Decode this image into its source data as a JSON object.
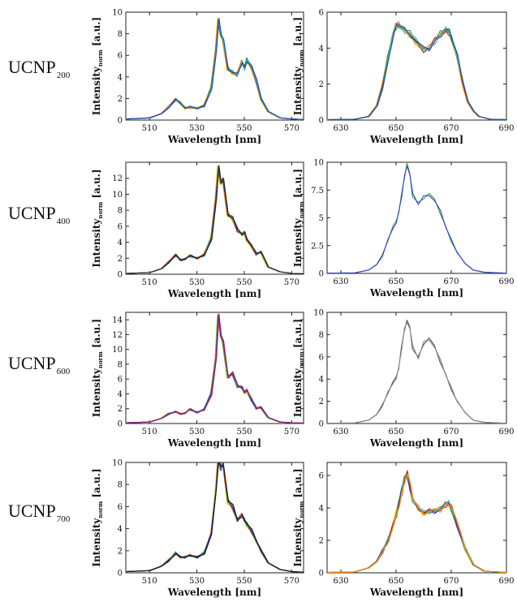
{
  "rows": [
    {
      "label_main": "UCNP",
      "label_sub": "200"
    },
    {
      "label_main": "UCNP",
      "label_sub": "400"
    },
    {
      "label_main": "UCNP",
      "label_sub": "600"
    },
    {
      "label_main": "UCNP",
      "label_sub": "700"
    }
  ],
  "ylabel_main": "Intensity",
  "ylabel_sub": "norm",
  "ylabel_unit": "[a.u.]",
  "xlabel": "Wavelength [nm]",
  "chart_data": [
    {
      "type": "line",
      "row": 0,
      "col": 0,
      "xlim": [
        500,
        575
      ],
      "ylim": [
        0,
        10
      ],
      "xticks": [
        510,
        530,
        550,
        570
      ],
      "yticks": [
        0,
        2,
        4,
        6,
        8,
        10
      ],
      "yticklabels": [
        "0",
        "2",
        "4",
        "6",
        "8",
        "10"
      ],
      "colors": [
        "#e6b800",
        "#ff8c00",
        "#d62728",
        "#2ca02c",
        "#17becf",
        "#1f3fbf"
      ],
      "x": [
        500,
        510,
        515,
        518,
        521,
        523,
        525,
        527,
        530,
        533,
        536,
        538,
        539,
        540,
        541,
        543,
        545,
        547,
        549,
        550,
        551,
        553,
        555,
        557,
        560,
        565,
        570,
        575
      ],
      "y": [
        0.1,
        0.2,
        0.6,
        1.2,
        1.9,
        1.6,
        1.1,
        1.2,
        1.1,
        1.3,
        3.0,
        6.5,
        9.2,
        8.0,
        7.4,
        4.8,
        4.4,
        4.2,
        5.4,
        4.8,
        5.6,
        4.9,
        3.6,
        2.0,
        0.8,
        0.2,
        0.1,
        0.05
      ]
    },
    {
      "type": "line",
      "row": 0,
      "col": 1,
      "xlim": [
        625,
        690
      ],
      "ylim": [
        0,
        6
      ],
      "xticks": [
        630,
        650,
        670,
        690
      ],
      "yticks": [
        0,
        2,
        4,
        6
      ],
      "yticklabels": [
        "0",
        "2",
        "4",
        "6"
      ],
      "colors": [
        "#e6b800",
        "#ff8c00",
        "#d62728",
        "#2ca02c",
        "#17becf",
        "#1f3fbf"
      ],
      "x": [
        625,
        635,
        640,
        643,
        645,
        647,
        649,
        650,
        651,
        653,
        655,
        657,
        660,
        662,
        664,
        666,
        668,
        669,
        670,
        672,
        674,
        676,
        678,
        680,
        684,
        690
      ],
      "y": [
        0.02,
        0.05,
        0.2,
        0.8,
        1.8,
        3.5,
        4.8,
        5.2,
        5.3,
        5.0,
        4.8,
        4.4,
        3.9,
        4.0,
        4.4,
        4.8,
        5.0,
        4.9,
        4.6,
        3.6,
        2.2,
        1.0,
        0.5,
        0.2,
        0.05,
        0.02
      ]
    },
    {
      "type": "line",
      "row": 1,
      "col": 0,
      "xlim": [
        500,
        575
      ],
      "ylim": [
        0,
        14
      ],
      "xticks": [
        510,
        530,
        550,
        570
      ],
      "yticks": [
        0,
        2,
        4,
        6,
        8,
        10,
        12
      ],
      "yticklabels": [
        "0",
        "2",
        "4",
        "6",
        "8",
        "10",
        "12"
      ],
      "colors": [
        "#e6b800",
        "#ff8c00",
        "#d62728",
        "#2ca02c",
        "#1f3fbf",
        "#222222"
      ],
      "x": [
        500,
        510,
        515,
        518,
        521,
        523,
        525,
        527,
        530,
        533,
        536,
        538,
        539,
        540,
        541,
        543,
        545,
        547,
        549,
        550,
        551,
        553,
        555,
        557,
        560,
        565,
        570,
        575
      ],
      "y": [
        0.1,
        0.2,
        0.7,
        1.5,
        2.4,
        1.8,
        1.9,
        2.3,
        2.0,
        2.4,
        4.5,
        9.5,
        13.3,
        11.5,
        11.8,
        7.5,
        7.0,
        5.5,
        5.0,
        5.2,
        4.4,
        3.5,
        2.5,
        2.8,
        0.9,
        0.3,
        0.1,
        0.05
      ]
    },
    {
      "type": "line",
      "row": 1,
      "col": 1,
      "xlim": [
        625,
        690
      ],
      "ylim": [
        0,
        10
      ],
      "xticks": [
        630,
        650,
        670,
        690
      ],
      "yticks": [
        0,
        2.5,
        5,
        7.5,
        10
      ],
      "yticklabels": [
        "0",
        "2.5",
        "5",
        "7.5",
        "10"
      ],
      "colors": [
        "#2ca02c",
        "#3b3bd6"
      ],
      "x": [
        625,
        635,
        640,
        643,
        645,
        647,
        649,
        650,
        651,
        652,
        653,
        654,
        655,
        656,
        658,
        660,
        662,
        664,
        666,
        668,
        670,
        672,
        675,
        678,
        682,
        690
      ],
      "y": [
        0.02,
        0.05,
        0.3,
        0.8,
        1.6,
        3.0,
        4.3,
        4.5,
        5.5,
        7.0,
        8.7,
        9.9,
        8.8,
        7.0,
        6.3,
        6.9,
        7.2,
        6.5,
        5.5,
        4.2,
        3.0,
        2.0,
        0.9,
        0.3,
        0.1,
        0.02
      ]
    },
    {
      "type": "line",
      "row": 2,
      "col": 0,
      "xlim": [
        500,
        575
      ],
      "ylim": [
        0,
        15
      ],
      "xticks": [
        510,
        530,
        550,
        570
      ],
      "yticks": [
        0,
        2,
        4,
        6,
        8,
        10,
        12,
        14
      ],
      "yticklabels": [
        "0",
        "2",
        "4",
        "6",
        "8",
        "10",
        "12",
        "14"
      ],
      "colors": [
        "#e6b800",
        "#2ca02c",
        "#17becf",
        "#1f3fbf",
        "#d62728",
        "#8b1a8b"
      ],
      "x": [
        500,
        510,
        515,
        518,
        521,
        523,
        525,
        527,
        530,
        533,
        536,
        538,
        539,
        540,
        541,
        543,
        545,
        547,
        549,
        550,
        551,
        553,
        555,
        557,
        560,
        565,
        570,
        575
      ],
      "y": [
        0.1,
        0.2,
        0.7,
        1.3,
        1.6,
        1.3,
        1.4,
        1.9,
        1.5,
        1.9,
        4.0,
        9.0,
        14.5,
        12.0,
        11.0,
        6.3,
        6.8,
        5.0,
        4.9,
        4.2,
        4.5,
        3.2,
        2.0,
        2.2,
        0.8,
        0.2,
        0.1,
        0.05
      ]
    },
    {
      "type": "line",
      "row": 2,
      "col": 1,
      "xlim": [
        625,
        690
      ],
      "ylim": [
        0,
        10
      ],
      "xticks": [
        630,
        650,
        670,
        690
      ],
      "yticks": [
        0,
        2,
        4,
        6,
        8,
        10
      ],
      "yticklabels": [
        "0",
        "2",
        "4",
        "6",
        "8",
        "10"
      ],
      "colors": [
        "#555555",
        "#888888"
      ],
      "x": [
        625,
        635,
        640,
        643,
        645,
        647,
        649,
        650,
        651,
        652,
        653,
        654,
        655,
        656,
        658,
        660,
        662,
        664,
        666,
        668,
        670,
        672,
        675,
        678,
        682,
        690
      ],
      "y": [
        0.02,
        0.05,
        0.3,
        0.8,
        1.6,
        2.8,
        3.8,
        4.0,
        5.0,
        6.8,
        8.5,
        9.3,
        8.5,
        6.8,
        5.9,
        7.3,
        7.7,
        6.8,
        5.6,
        4.4,
        3.2,
        2.1,
        1.0,
        0.3,
        0.1,
        0.02
      ]
    },
    {
      "type": "line",
      "row": 3,
      "col": 0,
      "xlim": [
        500,
        575
      ],
      "ylim": [
        0,
        10
      ],
      "xticks": [
        510,
        530,
        550,
        570
      ],
      "yticks": [
        0,
        2,
        4,
        6,
        8,
        10
      ],
      "yticklabels": [
        "0",
        "2",
        "4",
        "6",
        "8",
        "10"
      ],
      "colors": [
        "#e6b800",
        "#d62728",
        "#2ca02c",
        "#1f3fbf",
        "#111111"
      ],
      "x": [
        500,
        510,
        515,
        518,
        521,
        523,
        525,
        527,
        530,
        533,
        536,
        538,
        539,
        540,
        541,
        543,
        545,
        547,
        549,
        550,
        551,
        553,
        555,
        557,
        560,
        565,
        570,
        575
      ],
      "y": [
        0.1,
        0.2,
        0.6,
        1.1,
        1.8,
        1.4,
        1.4,
        1.6,
        1.4,
        1.8,
        3.5,
        7.5,
        10.3,
        9.5,
        10.0,
        6.5,
        6.0,
        4.8,
        5.2,
        4.8,
        4.4,
        3.8,
        2.9,
        2.0,
        0.9,
        0.3,
        0.1,
        0.05
      ]
    },
    {
      "type": "line",
      "row": 3,
      "col": 1,
      "xlim": [
        625,
        690
      ],
      "ylim": [
        0,
        6.8
      ],
      "xticks": [
        630,
        650,
        670,
        690
      ],
      "yticks": [
        0,
        2,
        4,
        6
      ],
      "yticklabels": [
        "0",
        "2",
        "4",
        "6"
      ],
      "colors": [
        "#e6b800",
        "#2ca02c",
        "#1f3fbf",
        "#17becf",
        "#d62728",
        "#ff8c00"
      ],
      "x": [
        625,
        635,
        640,
        643,
        645,
        647,
        649,
        650,
        651,
        652,
        653,
        654,
        655,
        656,
        658,
        660,
        662,
        664,
        666,
        668,
        669,
        670,
        672,
        675,
        678,
        682,
        690
      ],
      "y": [
        0.02,
        0.05,
        0.3,
        0.7,
        1.3,
        2.0,
        3.0,
        3.5,
        4.2,
        5.0,
        5.8,
        6.1,
        5.3,
        4.5,
        4.0,
        3.7,
        3.8,
        3.8,
        3.9,
        4.2,
        4.3,
        4.0,
        3.0,
        1.5,
        0.5,
        0.1,
        0.02
      ]
    }
  ]
}
